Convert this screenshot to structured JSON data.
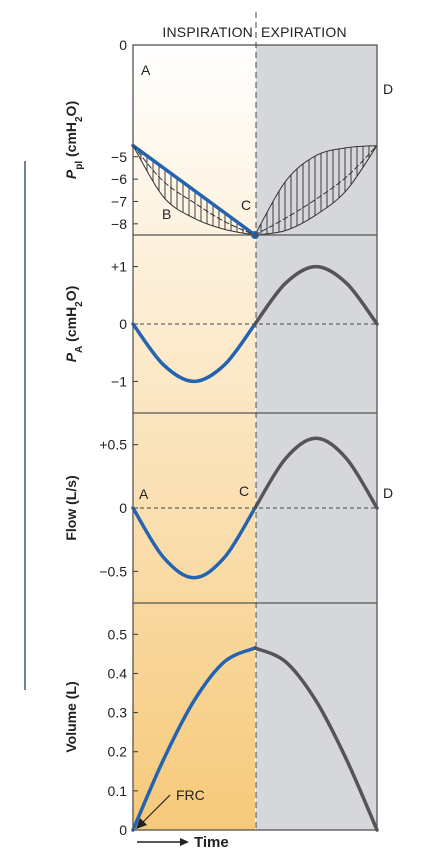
{
  "colors": {
    "inspiration_bg_top": "#ffffff",
    "inspiration_bg_bottom": "#f6c97a",
    "expiration_bg": "#d6d7da",
    "inspiration_curve": "#2363b0",
    "expiration_curve": "#555559",
    "frame": "#555555"
  },
  "header": {
    "inspiration": "INSPIRATION",
    "expiration": "EXPIRATION"
  },
  "chart_data": [
    {
      "type": "line",
      "panel": "pleural_pressure",
      "ylabel_main": "P",
      "ylabel_sub": "pl",
      "ylabel_unit_open": " (cmH",
      "ylabel_unit_sub": "2",
      "ylabel_unit_close": "O)",
      "ylim": [
        -8.5,
        0
      ],
      "yticks": [
        0,
        -5,
        -6,
        -7,
        -8
      ],
      "ytick_labels": [
        "0",
        "−5",
        "−6",
        "−7",
        "−8"
      ],
      "x_range": [
        0,
        2
      ],
      "series": [
        {
          "points": [
            [
              0,
              -4.5
            ],
            [
              1,
              -8.5
            ]
          ],
          "style": "solid",
          "phase": "inspiration"
        },
        {
          "points": [
            [
              0,
              -4.5
            ],
            [
              0.25,
              -6.8
            ],
            [
              0.5,
              -7.75
            ],
            [
              0.75,
              -8.25
            ],
            [
              1,
              -8.5
            ]
          ],
          "style": "thin",
          "phase": "inspiration"
        },
        {
          "points": [
            [
              0,
              -4.5
            ],
            [
              0.25,
              -6.1
            ],
            [
              0.5,
              -7.05
            ],
            [
              0.75,
              -7.9
            ],
            [
              1,
              -8.5
            ]
          ],
          "style": "dashed",
          "phase": "inspiration"
        },
        {
          "points": [
            [
              1,
              -8.5
            ],
            [
              1.25,
              -6.1
            ],
            [
              1.5,
              -4.95
            ],
            [
              1.75,
              -4.6
            ],
            [
              2,
              -4.5
            ]
          ],
          "style": "thin",
          "phase": "expiration"
        },
        {
          "points": [
            [
              1,
              -8.5
            ],
            [
              1.25,
              -7.75
            ],
            [
              1.5,
              -6.9
            ],
            [
              1.75,
              -5.9
            ],
            [
              2,
              -4.5
            ]
          ],
          "style": "dashed",
          "phase": "expiration"
        },
        {
          "points": [
            [
              1,
              -8.5
            ],
            [
              1.25,
              -8.3
            ],
            [
              1.5,
              -7.6
            ],
            [
              1.75,
              -6.5
            ],
            [
              2,
              -4.5
            ]
          ],
          "style": "thin",
          "phase": "expiration"
        }
      ],
      "point_labels": [
        "A",
        "B",
        "C",
        "D"
      ]
    },
    {
      "type": "line",
      "panel": "alveolar_pressure",
      "ylabel_main": "P",
      "ylabel_sub": "A",
      "ylabel_unit_open": " (cmH",
      "ylabel_unit_sub": "2",
      "ylabel_unit_close": "O)",
      "ylim": [
        -1.55,
        1.55
      ],
      "yticks": [
        1,
        0,
        -1
      ],
      "ytick_labels": [
        "+1",
        "0",
        "−1"
      ],
      "x_range": [
        0,
        2
      ],
      "reference_line": 0,
      "series": [
        {
          "points": [
            [
              0,
              0
            ],
            [
              0.25,
              -0.71
            ],
            [
              0.5,
              -1.0
            ],
            [
              0.75,
              -0.71
            ],
            [
              1,
              0
            ]
          ],
          "phase": "inspiration"
        },
        {
          "points": [
            [
              1,
              0
            ],
            [
              1.25,
              0.71
            ],
            [
              1.5,
              1.0
            ],
            [
              1.75,
              0.71
            ],
            [
              2,
              0
            ]
          ],
          "phase": "expiration"
        }
      ]
    },
    {
      "type": "line",
      "panel": "flow",
      "ylabel": "Flow (L/s)",
      "ylim": [
        -0.75,
        0.75
      ],
      "yticks": [
        0.5,
        0,
        -0.5
      ],
      "ytick_labels": [
        "+0.5",
        "0",
        "−0.5"
      ],
      "x_range": [
        0,
        2
      ],
      "reference_line": 0,
      "series": [
        {
          "points": [
            [
              0,
              0
            ],
            [
              0.25,
              -0.39
            ],
            [
              0.5,
              -0.55
            ],
            [
              0.75,
              -0.39
            ],
            [
              1,
              0
            ]
          ],
          "phase": "inspiration"
        },
        {
          "points": [
            [
              1,
              0
            ],
            [
              1.25,
              0.39
            ],
            [
              1.5,
              0.55
            ],
            [
              1.75,
              0.39
            ],
            [
              2,
              0
            ]
          ],
          "phase": "expiration"
        }
      ],
      "point_labels": [
        "A",
        "C",
        "D"
      ]
    },
    {
      "type": "line",
      "panel": "volume",
      "ylabel": "Volume (L)",
      "ylim": [
        0,
        0.58
      ],
      "yticks": [
        0,
        0.1,
        0.2,
        0.3,
        0.4,
        0.5
      ],
      "ytick_labels": [
        "0",
        "0.1",
        "0.2",
        "0.3",
        "0.4",
        "0.5"
      ],
      "x_range": [
        0,
        2
      ],
      "series": [
        {
          "points": [
            [
              0,
              0
            ],
            [
              0.25,
              0.18
            ],
            [
              0.5,
              0.33
            ],
            [
              0.75,
              0.43
            ],
            [
              1,
              0.465
            ]
          ],
          "phase": "inspiration"
        },
        {
          "points": [
            [
              1,
              0.465
            ],
            [
              1.25,
              0.43
            ],
            [
              1.5,
              0.33
            ],
            [
              1.75,
              0.18
            ],
            [
              2,
              0
            ]
          ],
          "phase": "expiration"
        }
      ],
      "annotation": "FRC",
      "xlabel": "Time"
    }
  ]
}
